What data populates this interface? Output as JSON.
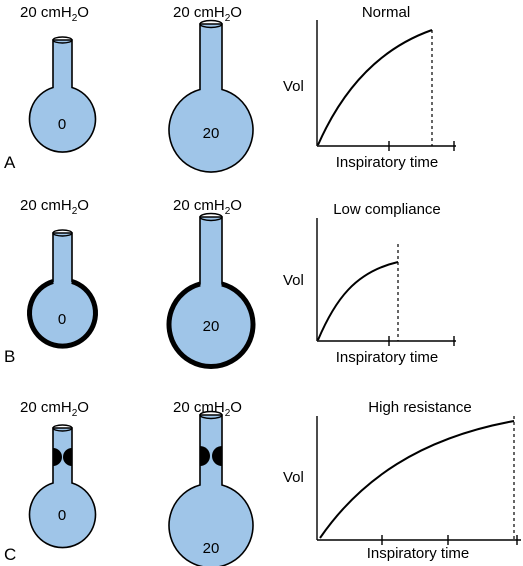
{
  "colors": {
    "lung_fill": "#9fc5e8",
    "outline": "#000000"
  },
  "rows": [
    {
      "letter": "A",
      "small_pressure": "20 cmH2O",
      "small_value": "0",
      "large_pressure": "20 cmH2O",
      "large_value": "20",
      "wall": "normal",
      "airway_obstruction": false,
      "graph_title": "Normal",
      "ylabel": "Vol",
      "xlabel": "Inspiratory time"
    },
    {
      "letter": "B",
      "small_pressure": "20 cmH2O",
      "small_value": "0",
      "large_pressure": "20 cmH2O",
      "large_value": "20",
      "wall": "thick",
      "airway_obstruction": false,
      "graph_title": "Low compliance",
      "ylabel": "Vol",
      "xlabel": "Inspiratory time"
    },
    {
      "letter": "C",
      "small_pressure": "20 cmH2O",
      "small_value": "0",
      "large_pressure": "20 cmH2O",
      "large_value": "20",
      "wall": "normal",
      "airway_obstruction": true,
      "graph_title": "High resistance",
      "ylabel": "Vol",
      "xlabel": "Inspiratory time"
    }
  ]
}
